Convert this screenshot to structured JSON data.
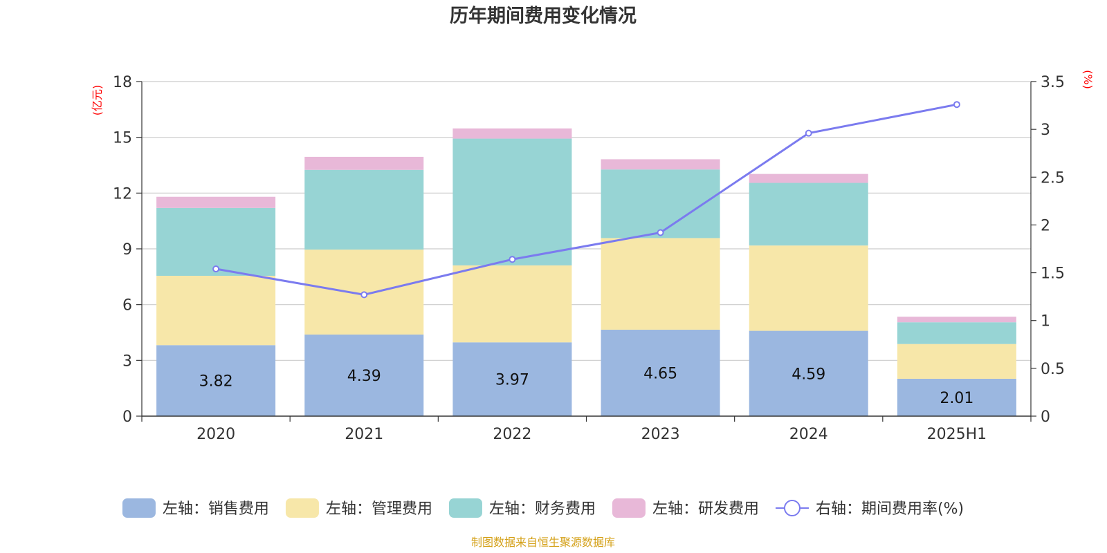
{
  "chart_data": {
    "type": "bar",
    "title": "历年期间费用变化情况",
    "categories": [
      "2020",
      "2021",
      "2022",
      "2023",
      "2024",
      "2025H1"
    ],
    "left_axis": {
      "unit": "(亿元)",
      "ylim": [
        0,
        18
      ],
      "ticks": [
        "0",
        "3",
        "6",
        "9",
        "12",
        "15",
        "18"
      ]
    },
    "right_axis": {
      "unit": "(%)",
      "ylim": [
        0,
        3.5
      ],
      "ticks": [
        "0",
        "0.5",
        "1",
        "1.5",
        "2",
        "2.5",
        "3",
        "3.5"
      ]
    },
    "series": [
      {
        "name": "左轴：销售费用",
        "type": "bar",
        "axis": "left",
        "color": "#9bb7e0",
        "values": [
          3.82,
          4.39,
          3.97,
          4.65,
          4.59,
          2.01
        ],
        "labels": [
          "3.82",
          "4.39",
          "3.97",
          "4.65",
          "4.59",
          "2.01"
        ]
      },
      {
        "name": "左轴：管理费用",
        "type": "bar",
        "axis": "left",
        "color": "#f7e7a9",
        "values": [
          3.73,
          4.57,
          4.14,
          4.93,
          4.59,
          1.87
        ]
      },
      {
        "name": "左轴：财务费用",
        "type": "bar",
        "axis": "left",
        "color": "#97d4d4",
        "values": [
          3.65,
          4.29,
          6.82,
          3.69,
          3.37,
          1.17
        ]
      },
      {
        "name": "左轴：研发费用",
        "type": "bar",
        "axis": "left",
        "color": "#e8b8d8",
        "values": [
          0.6,
          0.7,
          0.55,
          0.55,
          0.48,
          0.3
        ]
      },
      {
        "name": "右轴：期间费用率(%)",
        "type": "line",
        "axis": "right",
        "color": "#7b7bef",
        "values": [
          1.54,
          1.27,
          1.64,
          1.92,
          2.96,
          3.26
        ]
      }
    ],
    "grid": true,
    "legend_position": "bottom",
    "source_note": "制图数据来自恒生聚源数据库"
  }
}
